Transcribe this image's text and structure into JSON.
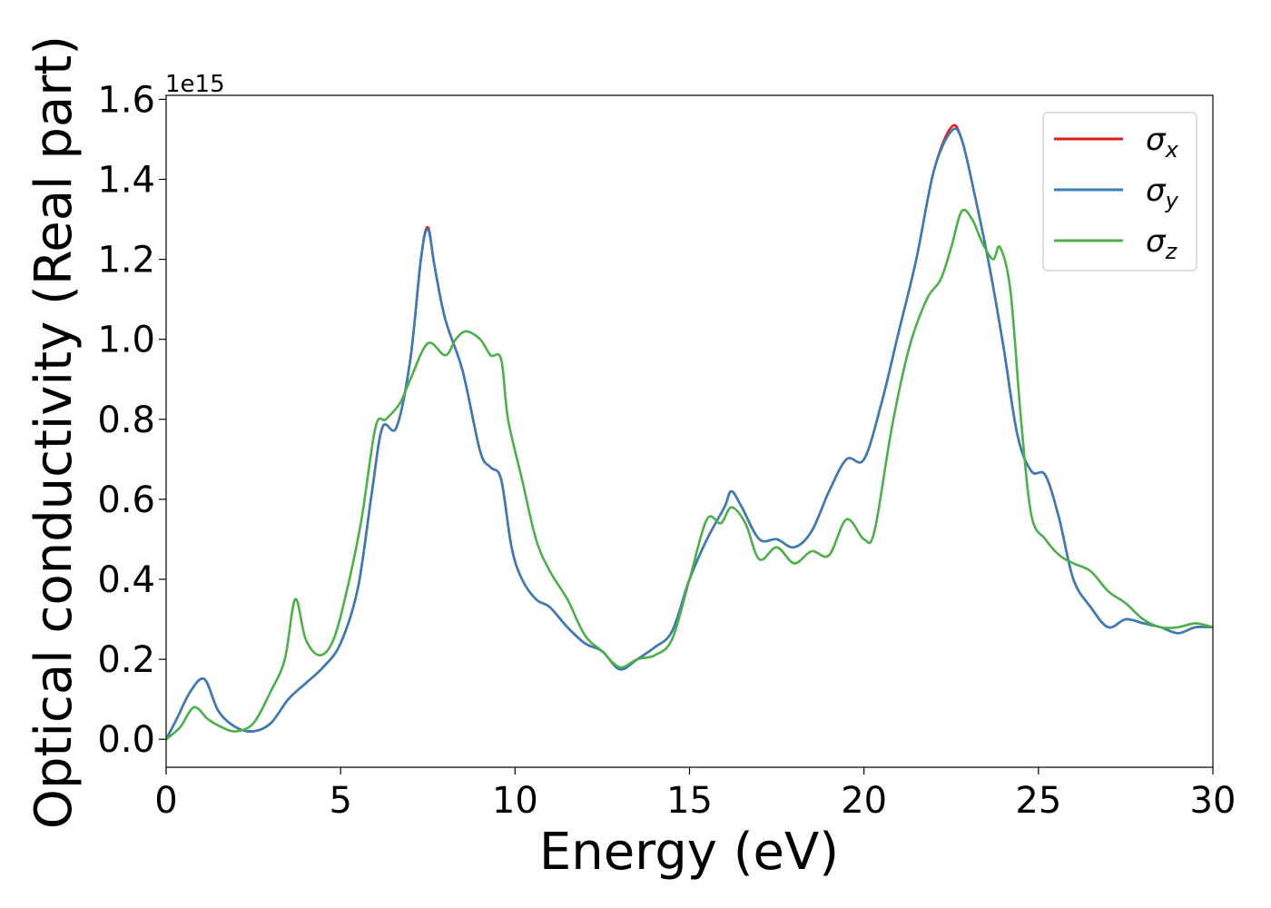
{
  "chart_data": {
    "type": "line",
    "title": "",
    "xlabel": "Energy (eV)",
    "ylabel": "Optical conductivity (Real part)",
    "y_offset_text": "1e15",
    "xlim": [
      0,
      30
    ],
    "ylim": [
      -0.07,
      1.61
    ],
    "xticks": [
      0,
      5,
      10,
      15,
      20,
      25,
      30
    ],
    "yticks": [
      0.0,
      0.2,
      0.4,
      0.6,
      0.8,
      1.0,
      1.2,
      1.4,
      1.6
    ],
    "xtick_labels": [
      "0",
      "5",
      "10",
      "15",
      "20",
      "25",
      "30"
    ],
    "ytick_labels": [
      "0.0",
      "0.2",
      "0.4",
      "0.6",
      "0.8",
      "1.0",
      "1.2",
      "1.4",
      "1.6"
    ],
    "grid": false,
    "legend_position": "top-right",
    "series": [
      {
        "name": "σ",
        "sub": "x",
        "color": "#e41a1c",
        "x": [
          0,
          0.3,
          0.7,
          1.1,
          1.5,
          2.0,
          2.5,
          3.0,
          3.5,
          4.0,
          4.5,
          5.0,
          5.5,
          5.9,
          6.2,
          6.6,
          7.0,
          7.3,
          7.5,
          7.7,
          8.0,
          8.5,
          9.0,
          9.3,
          9.6,
          9.9,
          10.2,
          10.6,
          11.0,
          11.5,
          12.0,
          12.5,
          13.0,
          13.5,
          14.0,
          14.5,
          15.0,
          15.5,
          16.0,
          16.2,
          16.5,
          17.0,
          17.5,
          18.0,
          18.5,
          19.0,
          19.5,
          20.0,
          20.5,
          21.0,
          21.5,
          22.0,
          22.5,
          22.8,
          23.2,
          23.6,
          24.0,
          24.4,
          24.8,
          25.2,
          25.6,
          26.0,
          26.5,
          27.0,
          27.5,
          28.0,
          28.5,
          29.0,
          29.5,
          30.0
        ],
        "y": [
          0.0,
          0.05,
          0.12,
          0.15,
          0.07,
          0.03,
          0.02,
          0.04,
          0.1,
          0.14,
          0.18,
          0.24,
          0.38,
          0.62,
          0.78,
          0.78,
          0.95,
          1.2,
          1.28,
          1.18,
          1.05,
          0.92,
          0.72,
          0.68,
          0.65,
          0.48,
          0.4,
          0.35,
          0.33,
          0.28,
          0.24,
          0.22,
          0.175,
          0.2,
          0.23,
          0.27,
          0.4,
          0.5,
          0.58,
          0.62,
          0.58,
          0.5,
          0.5,
          0.48,
          0.52,
          0.62,
          0.7,
          0.7,
          0.84,
          1.02,
          1.2,
          1.42,
          1.53,
          1.5,
          1.35,
          1.18,
          0.98,
          0.76,
          0.67,
          0.66,
          0.55,
          0.4,
          0.33,
          0.28,
          0.3,
          0.29,
          0.28,
          0.265,
          0.28,
          0.28
        ]
      },
      {
        "name": "σ",
        "sub": "y",
        "color": "#377eb8",
        "x": [
          0,
          0.3,
          0.7,
          1.1,
          1.5,
          2.0,
          2.5,
          3.0,
          3.5,
          4.0,
          4.5,
          5.0,
          5.5,
          5.9,
          6.2,
          6.6,
          7.0,
          7.3,
          7.5,
          7.7,
          8.0,
          8.5,
          9.0,
          9.3,
          9.6,
          9.9,
          10.2,
          10.6,
          11.0,
          11.5,
          12.0,
          12.5,
          13.0,
          13.5,
          14.0,
          14.5,
          15.0,
          15.5,
          16.0,
          16.2,
          16.5,
          17.0,
          17.5,
          18.0,
          18.5,
          19.0,
          19.5,
          20.0,
          20.5,
          21.0,
          21.5,
          22.0,
          22.5,
          22.8,
          23.2,
          23.6,
          24.0,
          24.4,
          24.8,
          25.2,
          25.6,
          26.0,
          26.5,
          27.0,
          27.5,
          28.0,
          28.5,
          29.0,
          29.5,
          30.0
        ],
        "y": [
          0.0,
          0.05,
          0.12,
          0.15,
          0.07,
          0.03,
          0.02,
          0.04,
          0.1,
          0.14,
          0.18,
          0.24,
          0.38,
          0.62,
          0.78,
          0.78,
          0.95,
          1.2,
          1.275,
          1.18,
          1.05,
          0.92,
          0.72,
          0.68,
          0.65,
          0.48,
          0.4,
          0.35,
          0.33,
          0.28,
          0.24,
          0.22,
          0.175,
          0.2,
          0.23,
          0.27,
          0.4,
          0.5,
          0.58,
          0.62,
          0.58,
          0.5,
          0.5,
          0.48,
          0.52,
          0.62,
          0.7,
          0.7,
          0.84,
          1.02,
          1.2,
          1.42,
          1.52,
          1.5,
          1.35,
          1.18,
          0.98,
          0.76,
          0.67,
          0.66,
          0.55,
          0.4,
          0.33,
          0.28,
          0.3,
          0.29,
          0.28,
          0.265,
          0.28,
          0.28
        ]
      },
      {
        "name": "σ",
        "sub": "z",
        "color": "#4daf4a",
        "x": [
          0,
          0.4,
          0.8,
          1.2,
          1.6,
          2.0,
          2.5,
          3.0,
          3.4,
          3.7,
          4.0,
          4.4,
          4.8,
          5.2,
          5.6,
          6.0,
          6.3,
          6.7,
          7.0,
          7.5,
          8.0,
          8.3,
          8.6,
          9.0,
          9.3,
          9.6,
          9.8,
          10.2,
          10.6,
          11.0,
          11.5,
          12.0,
          12.5,
          13.0,
          13.5,
          14.0,
          14.5,
          15.0,
          15.5,
          15.9,
          16.2,
          16.6,
          17.0,
          17.5,
          18.0,
          18.5,
          19.0,
          19.5,
          20.0,
          20.3,
          20.8,
          21.3,
          21.8,
          22.2,
          22.5,
          22.8,
          23.1,
          23.4,
          23.7,
          23.9,
          24.2,
          24.5,
          24.8,
          25.2,
          25.6,
          26.0,
          26.5,
          27.0,
          27.5,
          28.0,
          28.5,
          29.0,
          29.5,
          30.0
        ],
        "y": [
          0.0,
          0.03,
          0.08,
          0.05,
          0.03,
          0.02,
          0.04,
          0.12,
          0.2,
          0.35,
          0.25,
          0.21,
          0.25,
          0.38,
          0.55,
          0.78,
          0.8,
          0.84,
          0.9,
          0.99,
          0.96,
          1.0,
          1.02,
          1.0,
          0.96,
          0.95,
          0.8,
          0.65,
          0.5,
          0.42,
          0.35,
          0.26,
          0.22,
          0.18,
          0.2,
          0.21,
          0.25,
          0.4,
          0.55,
          0.54,
          0.58,
          0.54,
          0.45,
          0.48,
          0.44,
          0.47,
          0.46,
          0.55,
          0.5,
          0.52,
          0.78,
          0.98,
          1.1,
          1.15,
          1.23,
          1.32,
          1.3,
          1.24,
          1.2,
          1.23,
          1.12,
          0.8,
          0.56,
          0.5,
          0.46,
          0.44,
          0.42,
          0.37,
          0.34,
          0.3,
          0.28,
          0.28,
          0.29,
          0.28
        ]
      }
    ]
  }
}
